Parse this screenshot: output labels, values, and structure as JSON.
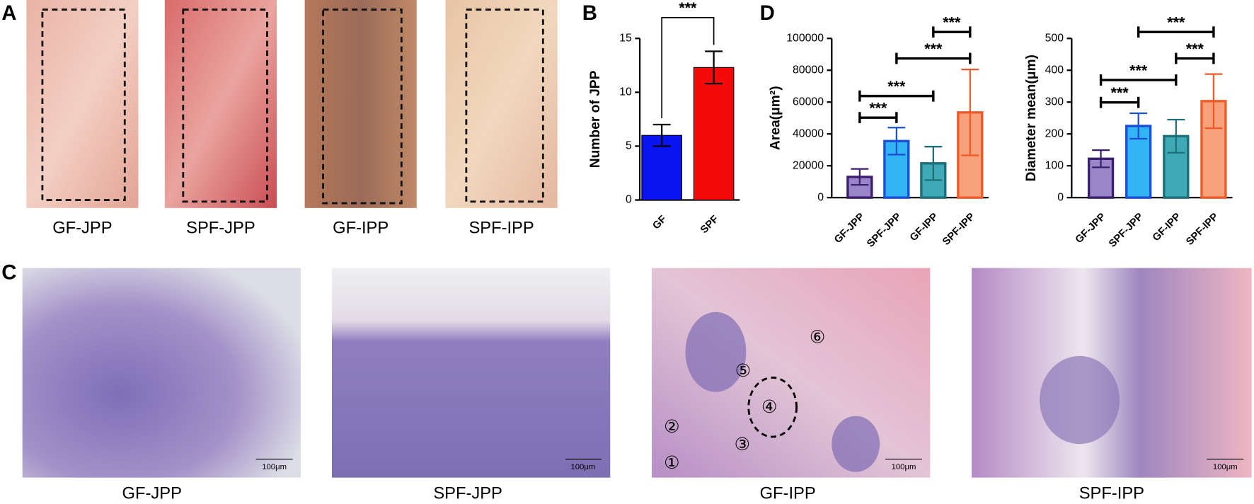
{
  "panel_letters": [
    "A",
    "B",
    "C",
    "D"
  ],
  "gross_photos": {
    "labels": [
      "GF-JPP",
      "SPF-JPP",
      "GF-IPP",
      "SPF-IPP"
    ]
  },
  "histology": {
    "labels": [
      "GF-JPP",
      "SPF-JPP",
      "GF-IPP",
      "SPF-IPP"
    ],
    "scale_bar": "100μm",
    "markers": [
      "①",
      "②",
      "③",
      "④",
      "⑤",
      "⑥"
    ]
  },
  "chart_data": [
    {
      "type": "bar",
      "ylabel": "Number of JPP",
      "categories": [
        "GF",
        "SPF"
      ],
      "values": [
        6,
        12.3
      ],
      "errors": [
        1,
        1.5
      ],
      "colors": [
        "#0a14f0",
        "#f50a0a"
      ],
      "edgecolors": [
        "#000000",
        "#000000"
      ],
      "errorcolor": "#000000",
      "ylim": [
        0,
        15
      ],
      "yticks": [
        0,
        5,
        10,
        15
      ],
      "significance": [
        {
          "pair": [
            0,
            1
          ],
          "label": "***"
        }
      ]
    },
    {
      "type": "bar",
      "ylabel": "Area(μm²)",
      "categories": [
        "GF-JPP",
        "SPF-JPP",
        "GF-IPP",
        "SPF-IPP"
      ],
      "values": [
        13000,
        35500,
        21500,
        53500
      ],
      "errors": [
        5000,
        8500,
        10500,
        27000
      ],
      "colors": [
        "#9b85c9",
        "#33b5f5",
        "#3fa9b5",
        "#f7a27a"
      ],
      "edgecolors": [
        "#3b1f6e",
        "#1a4fd6",
        "#1d6f7a",
        "#f05a28"
      ],
      "ylim": [
        0,
        100000
      ],
      "yticks": [
        0,
        20000,
        40000,
        60000,
        80000,
        100000
      ],
      "significance": [
        {
          "pair": [
            0,
            1
          ],
          "label": "***"
        },
        {
          "pair": [
            0,
            2
          ],
          "label": "***"
        },
        {
          "pair": [
            1,
            3
          ],
          "label": "***"
        },
        {
          "pair": [
            2,
            3
          ],
          "label": "***"
        }
      ]
    },
    {
      "type": "bar",
      "ylabel": "Diameter mean(μm)",
      "categories": [
        "GF-JPP",
        "SPF-JPP",
        "GF-IPP",
        "SPF-IPP"
      ],
      "values": [
        122,
        225,
        193,
        303
      ],
      "errors": [
        27,
        40,
        52,
        85
      ],
      "colors": [
        "#9b85c9",
        "#33b5f5",
        "#3fa9b5",
        "#f7a27a"
      ],
      "edgecolors": [
        "#3b1f6e",
        "#1a4fd6",
        "#1d6f7a",
        "#f05a28"
      ],
      "ylim": [
        0,
        500
      ],
      "yticks": [
        0,
        100,
        200,
        300,
        400,
        500
      ],
      "significance": [
        {
          "pair": [
            0,
            1
          ],
          "label": "***"
        },
        {
          "pair": [
            0,
            2
          ],
          "label": "***"
        },
        {
          "pair": [
            1,
            3
          ],
          "label": "***"
        },
        {
          "pair": [
            2,
            3
          ],
          "label": "***"
        }
      ]
    }
  ]
}
